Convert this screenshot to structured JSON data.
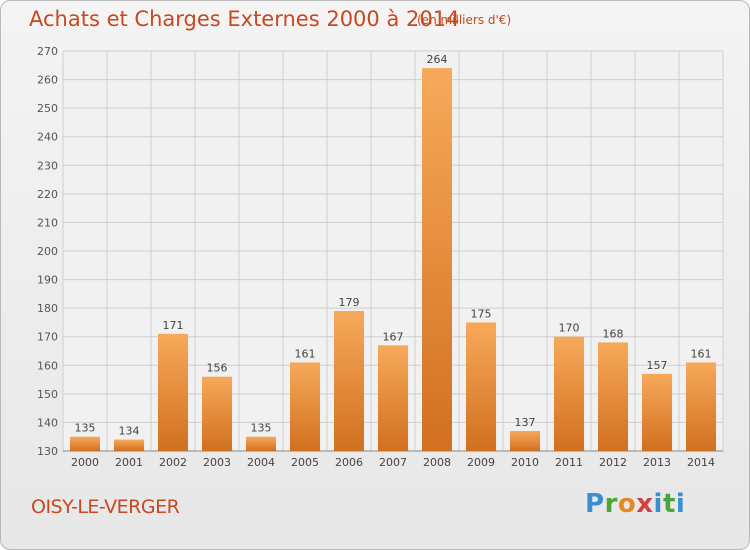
{
  "header": {
    "title": "Achats et Charges Externes 2000 à 2014",
    "unit": "(en milliers d'€)"
  },
  "commune": "OISY-LE-VERGER",
  "logo": {
    "letters": [
      "P",
      "r",
      "o",
      "x",
      "i",
      "t",
      "i"
    ]
  },
  "colors": {
    "accent": "#c8481f",
    "bar_light": "#f7a95a",
    "bar_dark": "#d1701f",
    "grid": "#cfcfcf"
  },
  "chart_data": {
    "type": "bar",
    "title": "Achats et Charges Externes 2000 à 2014",
    "subtitle": "(en milliers d'€)",
    "categories": [
      "2000",
      "2001",
      "2002",
      "2003",
      "2004",
      "2005",
      "2006",
      "2007",
      "2008",
      "2009",
      "2010",
      "2011",
      "2012",
      "2013",
      "2014"
    ],
    "values": [
      135,
      134,
      171,
      156,
      135,
      161,
      179,
      167,
      264,
      175,
      137,
      170,
      168,
      157,
      161
    ],
    "ylim": [
      130,
      270
    ],
    "yticks": [
      130,
      140,
      150,
      160,
      170,
      180,
      190,
      200,
      210,
      220,
      230,
      240,
      250,
      260,
      270
    ],
    "grid": true
  }
}
